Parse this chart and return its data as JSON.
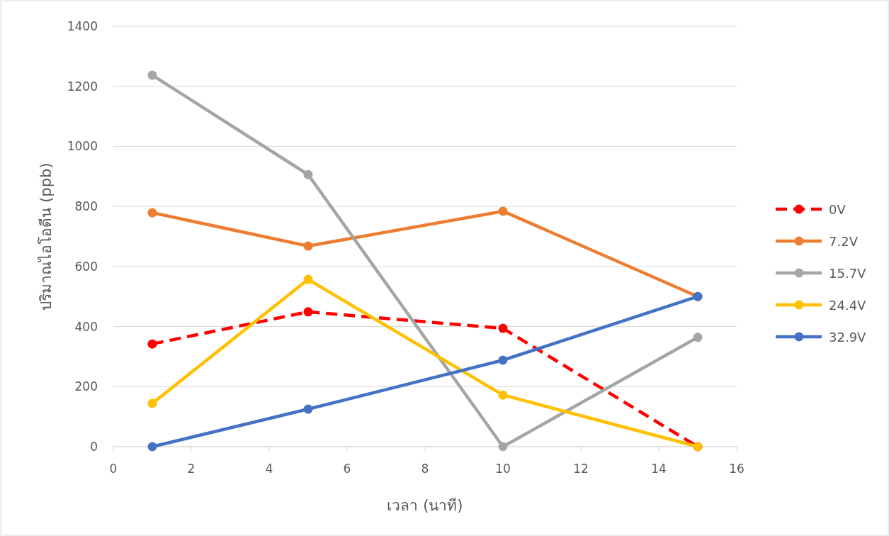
{
  "chart_data": {
    "type": "line",
    "xlabel": "เวลา (นาที)",
    "ylabel": "ปริมาณไอโอดีน (ppb)",
    "x": [
      1,
      5,
      10,
      15
    ],
    "xlim": [
      0,
      16
    ],
    "xticks": [
      0,
      2,
      4,
      6,
      8,
      10,
      12,
      14,
      16
    ],
    "ylim": [
      0,
      1400
    ],
    "yticks": [
      0,
      200,
      400,
      600,
      800,
      1000,
      1200,
      1400
    ],
    "grid": "y",
    "legend": "right",
    "marker": "circle",
    "line_style": "solid",
    "series": [
      {
        "name": "0V",
        "color": "#ff0000",
        "line_style": "dashed",
        "values": [
          342,
          449,
          394,
          0
        ]
      },
      {
        "name": "7.2V",
        "color": "#ed7d31",
        "values": [
          779,
          668,
          784,
          500
        ]
      },
      {
        "name": "15.7V",
        "color": "#a5a5a5",
        "values": [
          1237,
          906,
          0,
          364
        ]
      },
      {
        "name": "24.4V",
        "color": "#ffc000",
        "values": [
          144,
          557,
          172,
          0
        ]
      },
      {
        "name": "32.9V",
        "color": "#4472c4",
        "values": [
          0,
          125,
          288,
          500
        ]
      }
    ]
  }
}
